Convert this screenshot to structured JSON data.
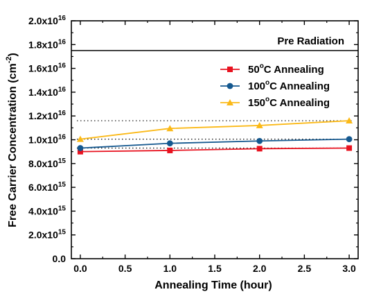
{
  "chart_data": {
    "type": "line",
    "xlabel": "Annealing Time (hour)",
    "ylabel_main": "Free Carrier Concentration (cm",
    "ylabel_sup": "-2",
    "ylabel_close": ")",
    "xlim": [
      -0.1,
      3.1
    ],
    "ylim": [
      0,
      2e+16
    ],
    "x_ticks": [
      0.0,
      0.5,
      1.0,
      1.5,
      2.0,
      2.5,
      3.0
    ],
    "x_tick_labels": [
      "0.0",
      "0.5",
      "1.0",
      "1.5",
      "2.0",
      "2.5",
      "3.0"
    ],
    "y_ticks": [
      0,
      2000000000000000.0,
      4000000000000000.0,
      6000000000000000.0,
      8000000000000000.0,
      1e+16,
      1.2e+16,
      1.4e+16,
      1.6e+16,
      1.8e+16,
      2e+16
    ],
    "y_tick_labels": [
      {
        "mant": "0.0",
        "exp": ""
      },
      {
        "mant": "2.0x10",
        "exp": "15"
      },
      {
        "mant": "4.0x10",
        "exp": "15"
      },
      {
        "mant": "6.0x10",
        "exp": "15"
      },
      {
        "mant": "8.0x10",
        "exp": "15"
      },
      {
        "mant": "1.0x10",
        "exp": "16"
      },
      {
        "mant": "1.2x10",
        "exp": "16"
      },
      {
        "mant": "1.4x10",
        "exp": "16"
      },
      {
        "mant": "1.6x10",
        "exp": "16"
      },
      {
        "mant": "1.8x10",
        "exp": "16"
      },
      {
        "mant": "2.0x10",
        "exp": "16"
      }
    ],
    "x": [
      0,
      1,
      2,
      3
    ],
    "series": [
      {
        "name_pre": "50",
        "name_deg": "o",
        "name_post": "C  Annealing",
        "color": "#e8121f",
        "marker": "square",
        "values": [
          9000000000000000.0,
          9100000000000000.0,
          9250000000000000.0,
          9300000000000000.0
        ]
      },
      {
        "name_pre": "100",
        "name_deg": "o",
        "name_post": "C Annealing",
        "color": "#14588f",
        "marker": "circle",
        "values": [
          9300000000000000.0,
          9700000000000000.0,
          9900000000000000.0,
          1.005e+16
        ]
      },
      {
        "name_pre": "150",
        "name_deg": "o",
        "name_post": "C Annealing",
        "color": "#fbb917",
        "marker": "triangle",
        "values": [
          1.005e+16,
          1.095e+16,
          1.12e+16,
          1.16e+16
        ]
      }
    ],
    "reference_line": {
      "label": "Pre Radiation",
      "value": 1.75e+16,
      "color": "#000000"
    },
    "dotted_lines": [
      1.16e+16,
      1.005e+16,
      9300000000000000.0
    ],
    "legend_position": "upper-right",
    "grid": false
  }
}
